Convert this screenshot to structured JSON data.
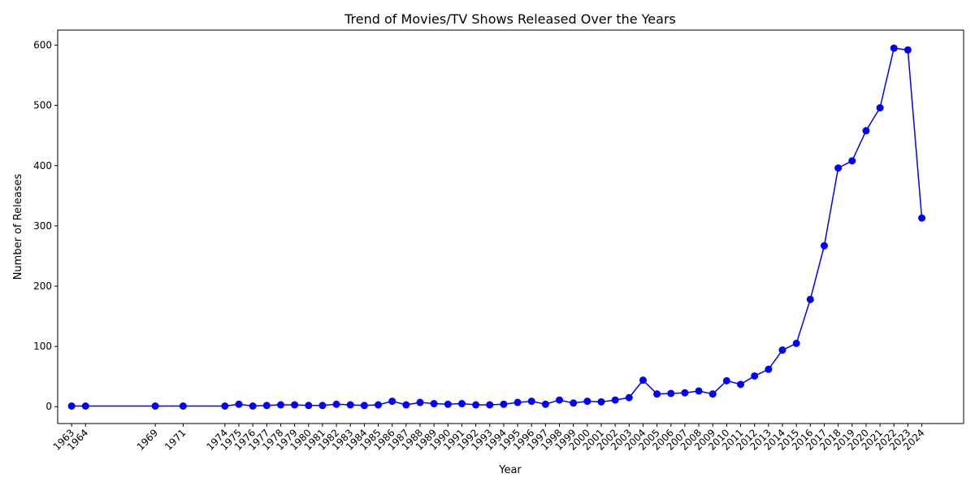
{
  "chart_data": {
    "type": "line",
    "title": "Trend of Movies/TV Shows Released Over the Years",
    "xlabel": "Year",
    "ylabel": "Number of Releases",
    "xlim": [
      1962,
      2027
    ],
    "ylim": [
      -28,
      625
    ],
    "yticks": [
      0,
      100,
      200,
      300,
      400,
      500,
      600
    ],
    "grid": false,
    "legend": "none",
    "line_color": "#0000ff",
    "marker": "circle",
    "x": [
      1963,
      1964,
      1969,
      1971,
      1974,
      1975,
      1976,
      1977,
      1978,
      1979,
      1980,
      1981,
      1982,
      1983,
      1984,
      1985,
      1986,
      1987,
      1988,
      1989,
      1990,
      1991,
      1992,
      1993,
      1994,
      1995,
      1996,
      1997,
      1998,
      1999,
      2000,
      2001,
      2002,
      2003,
      2004,
      2005,
      2006,
      2007,
      2008,
      2009,
      2010,
      2011,
      2012,
      2013,
      2014,
      2015,
      2016,
      2017,
      2018,
      2019,
      2020,
      2021,
      2022,
      2023,
      2024
    ],
    "y": [
      1,
      1,
      1,
      1,
      1,
      4,
      1,
      2,
      3,
      3,
      2,
      2,
      4,
      3,
      2,
      3,
      9,
      3,
      7,
      5,
      4,
      5,
      3,
      3,
      4,
      7,
      9,
      4,
      11,
      6,
      9,
      8,
      11,
      15,
      44,
      21,
      22,
      23,
      26,
      21,
      43,
      37,
      51,
      62,
      94,
      105,
      178,
      267,
      396,
      408,
      458,
      496,
      595,
      592,
      313
    ]
  }
}
